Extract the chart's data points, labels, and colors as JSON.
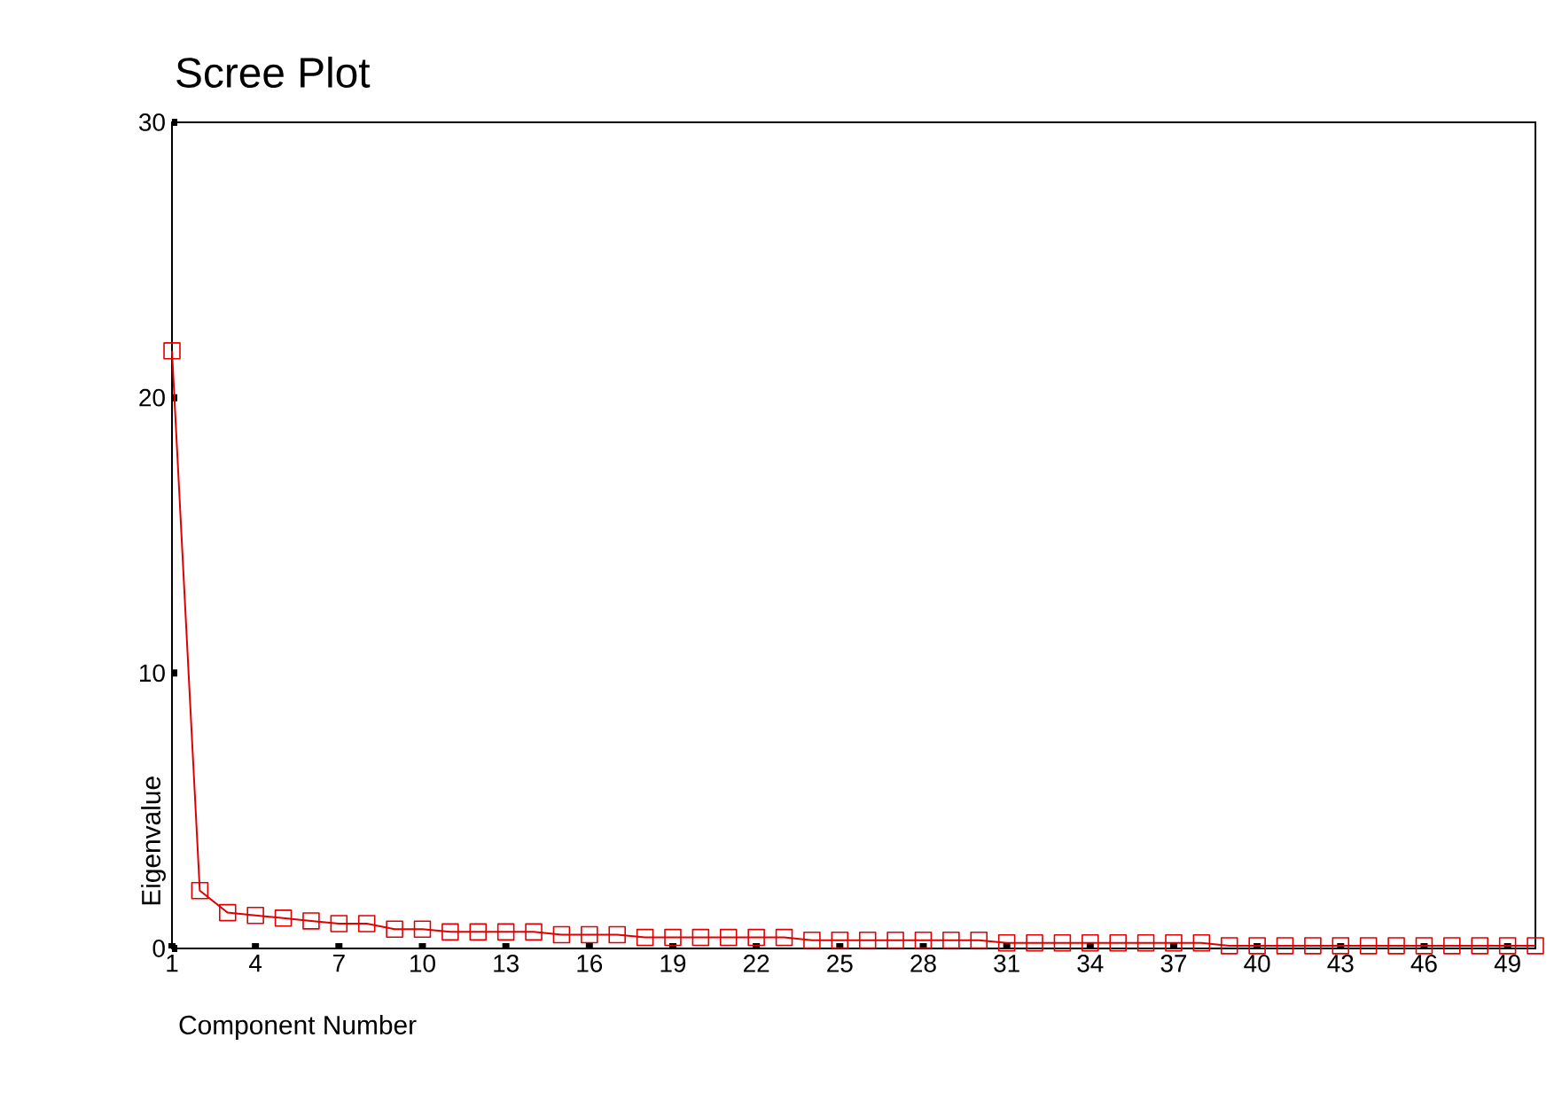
{
  "chart_data": {
    "type": "line",
    "title": "Scree Plot",
    "xlabel": "Component Number",
    "ylabel": "Eigenvalue",
    "x": [
      1,
      2,
      3,
      4,
      5,
      6,
      7,
      8,
      9,
      10,
      11,
      12,
      13,
      14,
      15,
      16,
      17,
      18,
      19,
      20,
      21,
      22,
      23,
      24,
      25,
      26,
      27,
      28,
      29,
      30,
      31,
      32,
      33,
      34,
      35,
      36,
      37,
      38,
      39,
      40,
      41,
      42,
      43,
      44,
      45,
      46,
      47,
      48,
      49,
      50
    ],
    "values": [
      21.7,
      2.1,
      1.3,
      1.2,
      1.1,
      1.0,
      0.9,
      0.9,
      0.7,
      0.7,
      0.6,
      0.6,
      0.6,
      0.6,
      0.5,
      0.5,
      0.5,
      0.4,
      0.4,
      0.4,
      0.4,
      0.4,
      0.4,
      0.3,
      0.3,
      0.3,
      0.3,
      0.3,
      0.3,
      0.3,
      0.2,
      0.2,
      0.2,
      0.2,
      0.2,
      0.2,
      0.2,
      0.2,
      0.1,
      0.1,
      0.1,
      0.1,
      0.1,
      0.1,
      0.1,
      0.1,
      0.1,
      0.1,
      0.1,
      0.1
    ],
    "color": "#e00000",
    "marker": "square",
    "line_style": "solid",
    "xlim": [
      1,
      50
    ],
    "xticks": [
      1,
      4,
      7,
      10,
      13,
      16,
      19,
      22,
      25,
      28,
      31,
      34,
      37,
      40,
      43,
      46,
      49
    ],
    "ylim": [
      0,
      30
    ],
    "yticks": [
      0,
      10,
      20,
      30
    ],
    "grid": false
  }
}
